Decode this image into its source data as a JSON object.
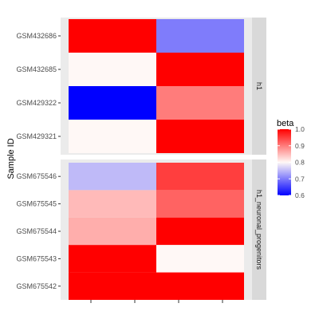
{
  "chart_data": {
    "type": "heatmap",
    "ylabel": "Sample ID",
    "xlabel": "",
    "x_categories": [
      "",
      ""
    ],
    "facets": [
      {
        "name": "h1",
        "rows": [
          "GSM432686",
          "GSM432685",
          "GSM429322",
          "GSM429321"
        ],
        "values": [
          [
            1.0,
            0.7
          ],
          [
            0.8,
            1.0
          ],
          [
            0.6,
            0.9
          ],
          [
            0.8,
            1.0
          ]
        ]
      },
      {
        "name": "h1_neuronal_progenitors",
        "rows": [
          "GSM675546",
          "GSM675545",
          "GSM675544",
          "GSM675543",
          "GSM675542"
        ],
        "values": [
          [
            0.75,
            0.95
          ],
          [
            0.85,
            0.92
          ],
          [
            0.86,
            1.0
          ],
          [
            1.0,
            0.8
          ],
          [
            1.0,
            1.0
          ]
        ]
      }
    ],
    "legend": {
      "title": "beta",
      "ticks": [
        "1.0",
        "0.9",
        "0.8",
        "0.7",
        "0.6"
      ],
      "tick_values": [
        1.0,
        0.9,
        0.8,
        0.7,
        0.6
      ],
      "min": 0.6,
      "mid": 0.8,
      "max": 1.0,
      "colors": {
        "low": "#0000ff",
        "mid": "#fff8f6",
        "high": "#ff0000"
      },
      "placement": "right"
    },
    "grid": true
  }
}
